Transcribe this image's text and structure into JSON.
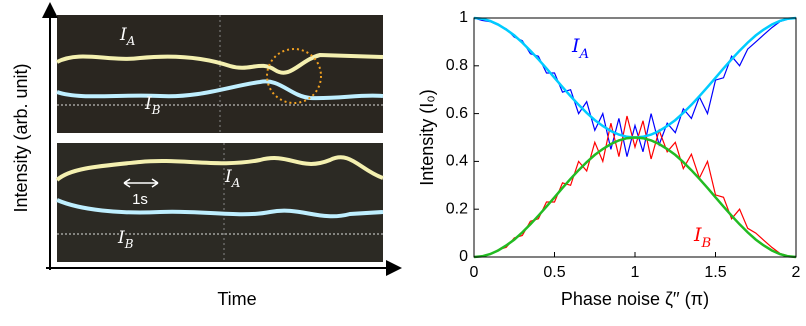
{
  "left_panel": {
    "ylabel": "Intensity (arb. unit)",
    "xlabel": "Time",
    "top_labels": [
      {
        "main": "I",
        "sub": "A"
      },
      {
        "main": "I",
        "sub": "B"
      }
    ],
    "bottom_labels": [
      {
        "main": "I",
        "sub": "A"
      },
      {
        "main": "I",
        "sub": "B"
      }
    ],
    "scale_label": "1s"
  },
  "chart_data": {
    "type": "line",
    "xlabel": "Phase noise ζ′′ (π)",
    "ylabel": "Intensity (I₀)",
    "xlim": [
      0,
      2
    ],
    "xticks": [
      0,
      0.5,
      1,
      1.5,
      2
    ],
    "ylim": [
      0,
      1
    ],
    "yticks": [
      0,
      0.2,
      0.4,
      0.6,
      0.8,
      1
    ],
    "x": [
      0,
      0.05,
      0.1,
      0.15,
      0.2,
      0.25,
      0.3,
      0.35,
      0.4,
      0.45,
      0.5,
      0.55,
      0.6,
      0.65,
      0.7,
      0.75,
      0.8,
      0.85,
      0.9,
      0.95,
      1,
      1.05,
      1.1,
      1.15,
      1.2,
      1.25,
      1.3,
      1.35,
      1.4,
      1.45,
      1.5,
      1.55,
      1.6,
      1.65,
      1.7,
      1.75,
      1.8,
      1.85,
      1.9,
      1.95,
      2
    ],
    "series": [
      {
        "color": "#0000ff",
        "values": [
          1,
          0.99,
          0.985,
          0.97,
          0.955,
          0.92,
          0.905,
          0.85,
          0.84,
          0.77,
          0.77,
          0.69,
          0.7,
          0.6,
          0.65,
          0.53,
          0.6,
          0.45,
          0.58,
          0.42,
          0.55,
          0.44,
          0.6,
          0.47,
          0.56,
          0.52,
          0.62,
          0.58,
          0.67,
          0.6,
          0.74,
          0.75,
          0.84,
          0.8,
          0.87,
          0.9,
          0.93,
          0.96,
          0.985,
          0.995,
          1
        ]
      },
      {
        "color": "#ff0000",
        "values": [
          0,
          0.005,
          0.01,
          0.03,
          0.04,
          0.08,
          0.09,
          0.15,
          0.16,
          0.23,
          0.23,
          0.31,
          0.3,
          0.4,
          0.36,
          0.48,
          0.4,
          0.56,
          0.42,
          0.59,
          0.46,
          0.57,
          0.41,
          0.53,
          0.44,
          0.48,
          0.37,
          0.43,
          0.33,
          0.4,
          0.26,
          0.25,
          0.16,
          0.2,
          0.12,
          0.1,
          0.07,
          0.04,
          0.015,
          0.005,
          0
        ]
      },
      {
        "color": "#00ccff",
        "values": [
          1,
          0.997,
          0.988,
          0.973,
          0.952,
          0.927,
          0.897,
          0.863,
          0.827,
          0.789,
          0.75,
          0.711,
          0.673,
          0.637,
          0.603,
          0.573,
          0.548,
          0.527,
          0.512,
          0.503,
          0.5,
          0.503,
          0.512,
          0.527,
          0.548,
          0.573,
          0.603,
          0.637,
          0.673,
          0.711,
          0.75,
          0.789,
          0.827,
          0.863,
          0.897,
          0.927,
          0.952,
          0.973,
          0.988,
          0.997,
          1
        ]
      },
      {
        "color": "#22bb22",
        "values": [
          0,
          0.003,
          0.012,
          0.027,
          0.048,
          0.073,
          0.103,
          0.137,
          0.173,
          0.211,
          0.25,
          0.289,
          0.327,
          0.363,
          0.397,
          0.427,
          0.452,
          0.473,
          0.488,
          0.497,
          0.5,
          0.497,
          0.488,
          0.473,
          0.452,
          0.427,
          0.397,
          0.363,
          0.327,
          0.289,
          0.25,
          0.211,
          0.173,
          0.137,
          0.103,
          0.073,
          0.048,
          0.027,
          0.012,
          0.003,
          0
        ]
      }
    ],
    "annotations": [
      {
        "main": "I",
        "sub": "A",
        "color": "#0000ff"
      },
      {
        "main": "I",
        "sub": "B",
        "color": "#ff0000"
      }
    ]
  }
}
